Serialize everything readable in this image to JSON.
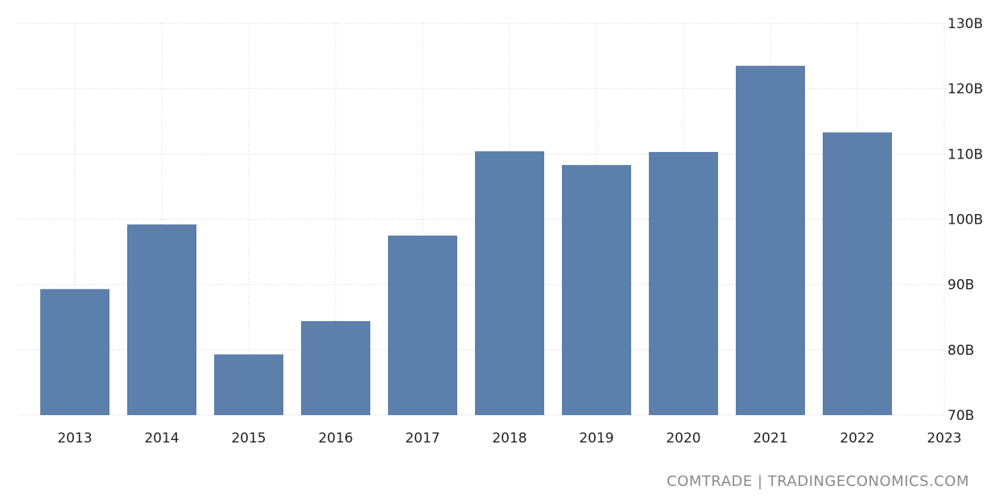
{
  "chart_data": {
    "type": "bar",
    "categories": [
      "2013",
      "2014",
      "2015",
      "2016",
      "2017",
      "2018",
      "2019",
      "2020",
      "2021",
      "2022"
    ],
    "values": [
      89.3,
      99.2,
      79.3,
      84.4,
      97.5,
      110.4,
      108.3,
      110.3,
      123.5,
      113.3
    ],
    "value_unit": "B",
    "xtick_labels": [
      "2013",
      "2014",
      "2015",
      "2016",
      "2017",
      "2018",
      "2019",
      "2020",
      "2021",
      "2022",
      "2023"
    ],
    "ytick_labels": [
      "70B",
      "80B",
      "90B",
      "100B",
      "110B",
      "120B",
      "130B"
    ],
    "ylim": [
      70,
      130
    ],
    "y_axis_position": "right",
    "grid": true,
    "bar_color": "#5d7fab",
    "grid_color": "#d4d4d4"
  },
  "source": "COMTRADE | TRADINGECONOMICS.COM"
}
